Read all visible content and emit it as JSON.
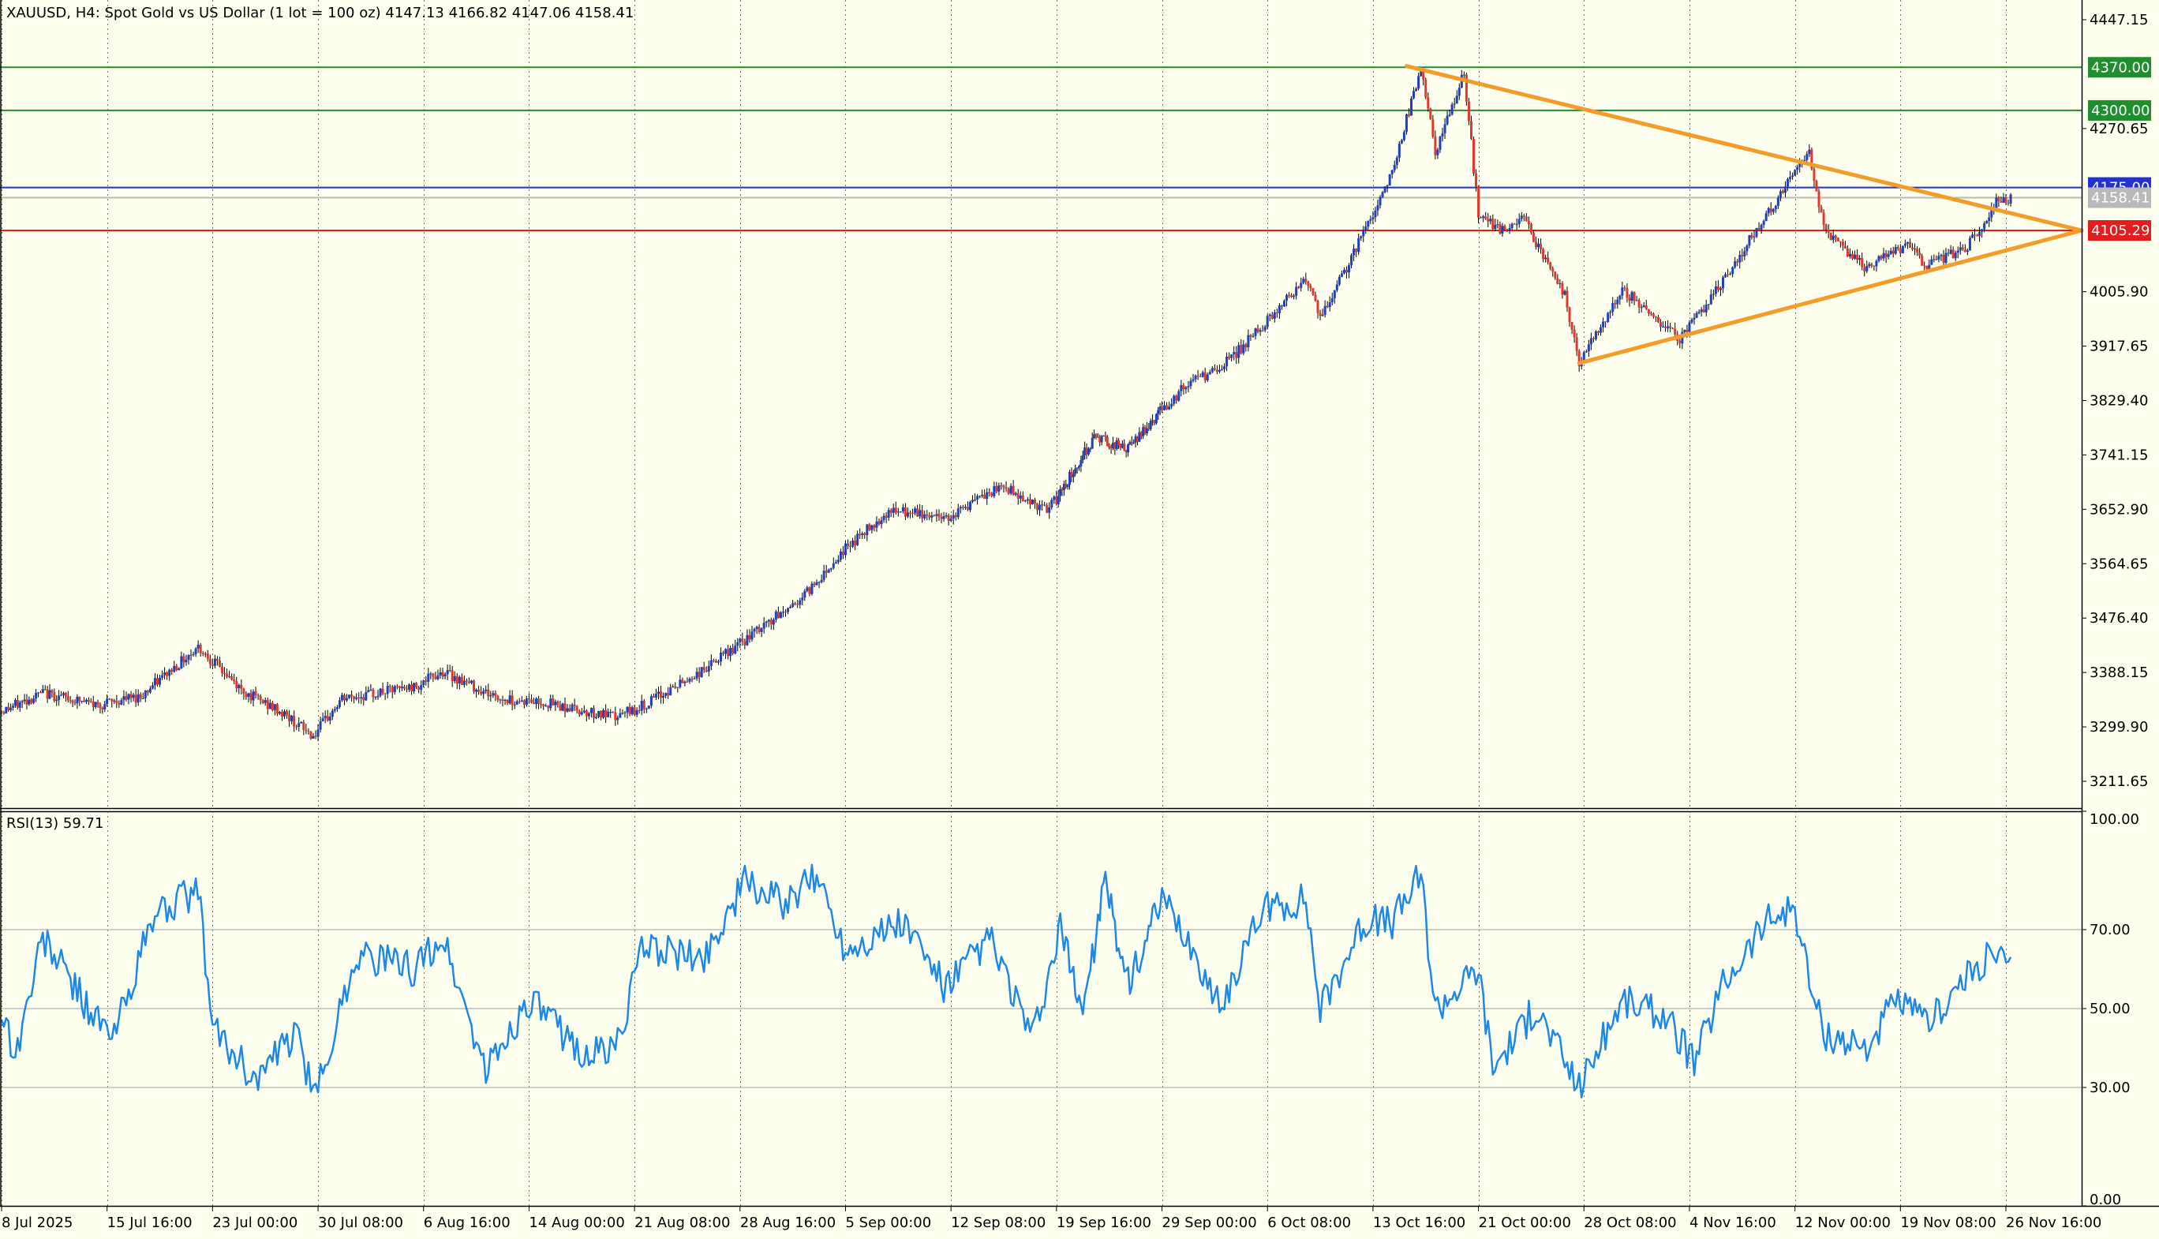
{
  "header": {
    "symbol_line": "XAUUSD, H4:  Spot Gold vs US Dollar (1 lot = 100 oz)  4147.13 4166.82 4147.06 4158.41"
  },
  "indicator": {
    "label": "RSI(13) 59.71"
  },
  "colors": {
    "background": "#fffff0",
    "bull_candle": "#1f3fbf",
    "bear_candle": "#e0392b",
    "rsi_line": "#1e88e5",
    "triangle": "#f39c29",
    "grid": "#000000"
  },
  "chart_data": [
    {
      "type": "candlestick",
      "symbol": "XAUUSD",
      "timeframe": "H4",
      "ylim": [
        3140,
        4530
      ],
      "y_ticks": [
        "4447.15",
        "4270.65",
        "4005.90",
        "3917.65",
        "3829.40",
        "3741.15",
        "3652.90",
        "3564.65",
        "3476.40",
        "3388.15",
        "3299.90",
        "3211.65"
      ],
      "x_labels": [
        "8 Jul 2025",
        "15 Jul 16:00",
        "23 Jul 00:00",
        "30 Jul 08:00",
        "6 Aug 16:00",
        "14 Aug 00:00",
        "21 Aug 08:00",
        "28 Aug 16:00",
        "5 Sep 00:00",
        "12 Sep 08:00",
        "19 Sep 16:00",
        "29 Sep 00:00",
        "6 Oct 08:00",
        "13 Oct 16:00",
        "21 Oct 00:00",
        "28 Oct 08:00",
        "4 Nov 16:00",
        "12 Nov 00:00",
        "19 Nov 08:00",
        "26 Nov 16:00"
      ],
      "horizontal_lines": [
        {
          "price": 4370.0,
          "label": "4370.00",
          "color": "#1e8e2e"
        },
        {
          "price": 4300.0,
          "label": "4300.00",
          "color": "#1e8e2e"
        },
        {
          "price": 4175.0,
          "label": "4175.00",
          "color": "#2430d0"
        },
        {
          "price": 4158.41,
          "label": "4158.41",
          "color": "#b9b9b9"
        },
        {
          "price": 4105.29,
          "label": "4105.29",
          "color": "#e31c1c"
        }
      ],
      "triangle_lines": [
        {
          "from": [
            "Oct 16",
            4372
          ],
          "to": [
            "Nov 30",
            4105.29
          ]
        },
        {
          "from": [
            "Oct 28",
            3890
          ],
          "to": [
            "Nov 30",
            4105.29
          ]
        }
      ],
      "price_path": [
        [
          "8 Jul",
          3325
        ],
        [
          "11 Jul",
          3355
        ],
        [
          "15 Jul",
          3335
        ],
        [
          "18 Jul",
          3350
        ],
        [
          "22 Jul",
          3430
        ],
        [
          "25 Jul",
          3360
        ],
        [
          "28 Jul",
          3320
        ],
        [
          "30 Jul",
          3285
        ],
        [
          "1 Aug",
          3345
        ],
        [
          "6 Aug",
          3365
        ],
        [
          "8 Aug",
          3390
        ],
        [
          "12 Aug",
          3345
        ],
        [
          "15 Aug",
          3340
        ],
        [
          "20 Aug",
          3315
        ],
        [
          "22 Aug",
          3335
        ],
        [
          "26 Aug",
          3390
        ],
        [
          "29 Aug",
          3440
        ],
        [
          "2 Sep",
          3510
        ],
        [
          "5 Sep",
          3590
        ],
        [
          "8 Sep",
          3650
        ],
        [
          "12 Sep",
          3640
        ],
        [
          "16 Sep",
          3690
        ],
        [
          "19 Sep",
          3650
        ],
        [
          "23 Sep",
          3770
        ],
        [
          "26 Sep",
          3750
        ],
        [
          "1 Oct",
          3860
        ],
        [
          "3 Oct",
          3880
        ],
        [
          "6 Oct",
          3950
        ],
        [
          "9 Oct",
          4030
        ],
        [
          "10 Oct",
          3960
        ],
        [
          "13 Oct",
          4100
        ],
        [
          "15 Oct",
          4200
        ],
        [
          "17 Oct",
          4370
        ],
        [
          "18 Oct",
          4230
        ],
        [
          "20 Oct",
          4360
        ],
        [
          "21 Oct",
          4130
        ],
        [
          "23 Oct",
          4100
        ],
        [
          "24 Oct",
          4130
        ],
        [
          "27 Oct",
          4000
        ],
        [
          "28 Oct",
          3890
        ],
        [
          "31 Oct",
          4010
        ],
        [
          "4 Nov",
          3930
        ],
        [
          "6 Nov",
          3990
        ],
        [
          "10 Nov",
          4130
        ],
        [
          "13 Nov",
          4230
        ],
        [
          "14 Nov",
          4110
        ],
        [
          "17 Nov",
          4040
        ],
        [
          "18 Nov",
          4060
        ],
        [
          "20 Nov",
          4080
        ],
        [
          "21 Nov",
          4045
        ],
        [
          "24 Nov",
          4080
        ],
        [
          "26 Nov",
          4150
        ],
        [
          "27 Nov",
          4158.41
        ]
      ]
    },
    {
      "type": "line",
      "name": "RSI(13)",
      "last_value": 59.71,
      "ylim": [
        0,
        100
      ],
      "y_ticks": [
        "100.00",
        "70.00",
        "50.00",
        "30.00",
        "0.00"
      ],
      "levels": [
        70,
        50,
        30
      ],
      "path": [
        [
          "8 Jul",
          50
        ],
        [
          "9 Jul",
          38
        ],
        [
          "11 Jul",
          68
        ],
        [
          "14 Jul",
          52
        ],
        [
          "16 Jul",
          42
        ],
        [
          "19 Jul",
          74
        ],
        [
          "22 Jul",
          80
        ],
        [
          "23 Jul",
          45
        ],
        [
          "26 Jul",
          32
        ],
        [
          "29 Jul",
          44
        ],
        [
          "30 Jul",
          26
        ],
        [
          "2 Aug",
          64
        ],
        [
          "6 Aug",
          60
        ],
        [
          "8 Aug",
          68
        ],
        [
          "11 Aug",
          34
        ],
        [
          "14 Aug",
          52
        ],
        [
          "18 Aug",
          38
        ],
        [
          "20 Aug",
          40
        ],
        [
          "22 Aug",
          66
        ],
        [
          "26 Aug",
          62
        ],
        [
          "29 Aug",
          82
        ],
        [
          "1 Sep",
          76
        ],
        [
          "3 Sep",
          84
        ],
        [
          "5 Sep",
          65
        ],
        [
          "9 Sep",
          72
        ],
        [
          "12 Sep",
          55
        ],
        [
          "15 Sep",
          68
        ],
        [
          "18 Sep",
          42
        ],
        [
          "20 Sep",
          70
        ],
        [
          "22 Sep",
          50
        ],
        [
          "24 Sep",
          82
        ],
        [
          "26 Sep",
          56
        ],
        [
          "29 Sep",
          77
        ],
        [
          "1 Oct",
          66
        ],
        [
          "3 Oct",
          50
        ],
        [
          "6 Oct",
          75
        ],
        [
          "9 Oct",
          78
        ],
        [
          "10 Oct",
          50
        ],
        [
          "13 Oct",
          72
        ],
        [
          "15 Oct",
          72
        ],
        [
          "17 Oct",
          84
        ],
        [
          "18 Oct",
          50
        ],
        [
          "21 Oct",
          60
        ],
        [
          "22 Oct",
          35
        ],
        [
          "25 Oct",
          50
        ],
        [
          "28 Oct",
          30
        ],
        [
          "31 Oct",
          52
        ],
        [
          "3 Nov",
          48
        ],
        [
          "5 Nov",
          36
        ],
        [
          "7 Nov",
          56
        ],
        [
          "10 Nov",
          72
        ],
        [
          "12 Nov",
          76
        ],
        [
          "13 Nov",
          57
        ],
        [
          "14 Nov",
          44
        ],
        [
          "17 Nov",
          40
        ],
        [
          "19 Nov",
          52
        ],
        [
          "21 Nov",
          46
        ],
        [
          "24 Nov",
          58
        ],
        [
          "25 Nov",
          62
        ],
        [
          "26 Nov",
          64
        ],
        [
          "27 Nov",
          59.71
        ]
      ]
    }
  ]
}
